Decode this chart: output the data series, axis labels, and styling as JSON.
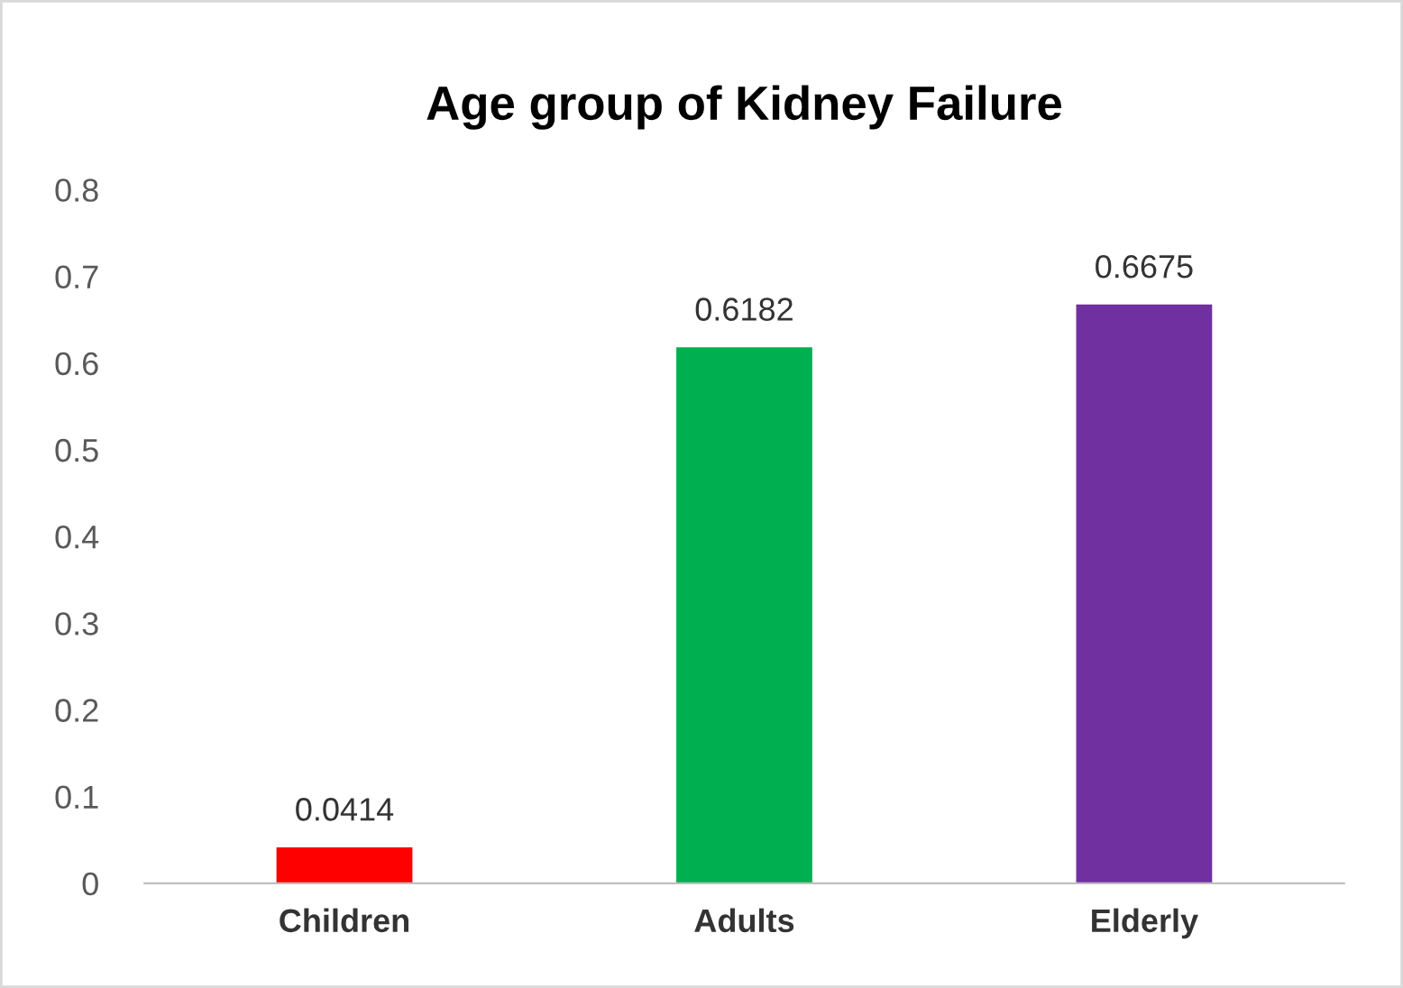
{
  "chart_data": {
    "type": "bar",
    "title": "Age group of Kidney Failure",
    "categories": [
      "Children",
      "Adults",
      "Elderly"
    ],
    "values": [
      0.0414,
      0.6182,
      0.6675
    ],
    "colors": [
      "#ff0000",
      "#00b050",
      "#7030a0"
    ],
    "ylim": [
      0,
      0.8
    ],
    "yticks": [
      {
        "value": 0,
        "label": "0"
      },
      0.1,
      0.2,
      0.3,
      0.4,
      0.5,
      0.6,
      0.7,
      0.8
    ],
    "data_labels": true,
    "grid": false,
    "legend": false
  }
}
